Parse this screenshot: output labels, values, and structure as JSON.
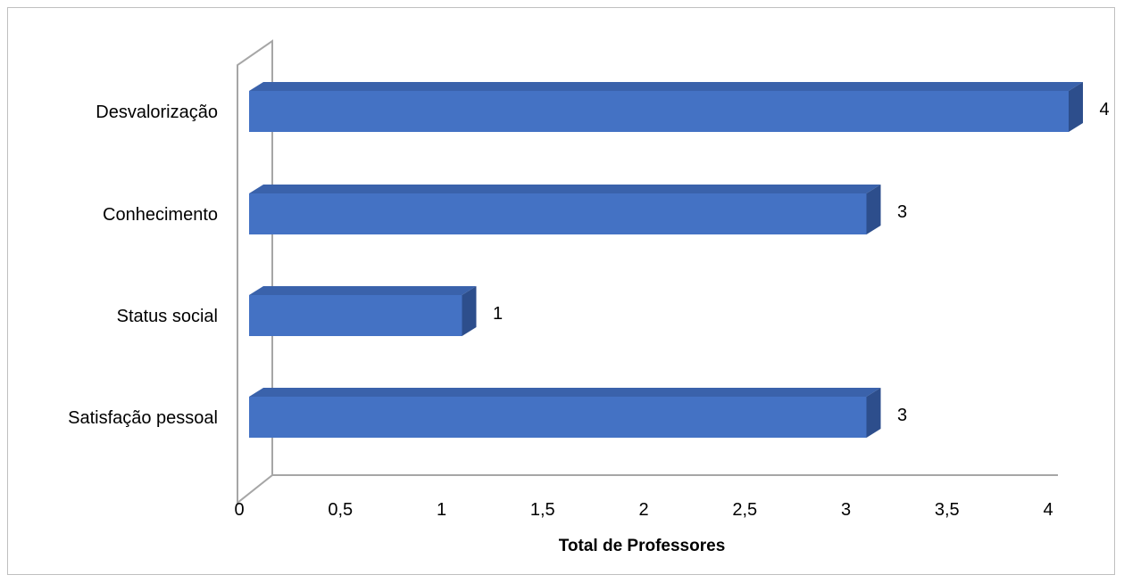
{
  "chart_data": {
    "type": "bar",
    "orientation": "horizontal",
    "style": "3d",
    "categories": [
      "Desvalorização",
      "Conhecimento",
      "Status social",
      "Satisfação pessoal"
    ],
    "values": [
      4,
      3,
      1,
      3
    ],
    "data_labels": [
      "4",
      "3",
      "1",
      "3"
    ],
    "xlabel": "Total de Professores",
    "ylabel": "",
    "xlim": [
      0,
      4
    ],
    "ticks": [
      0,
      0.5,
      1,
      1.5,
      2,
      2.5,
      3,
      3.5,
      4
    ],
    "tick_labels": [
      "0",
      "0,5",
      "1",
      "1,5",
      "2",
      "2,5",
      "3",
      "3,5",
      "4"
    ],
    "grid": false,
    "legend": "none",
    "colors": {
      "bar_front": "#4472c4",
      "bar_top": "#3a62ab",
      "bar_side": "#2d4e8c",
      "axis": "#a6a6a6"
    }
  }
}
